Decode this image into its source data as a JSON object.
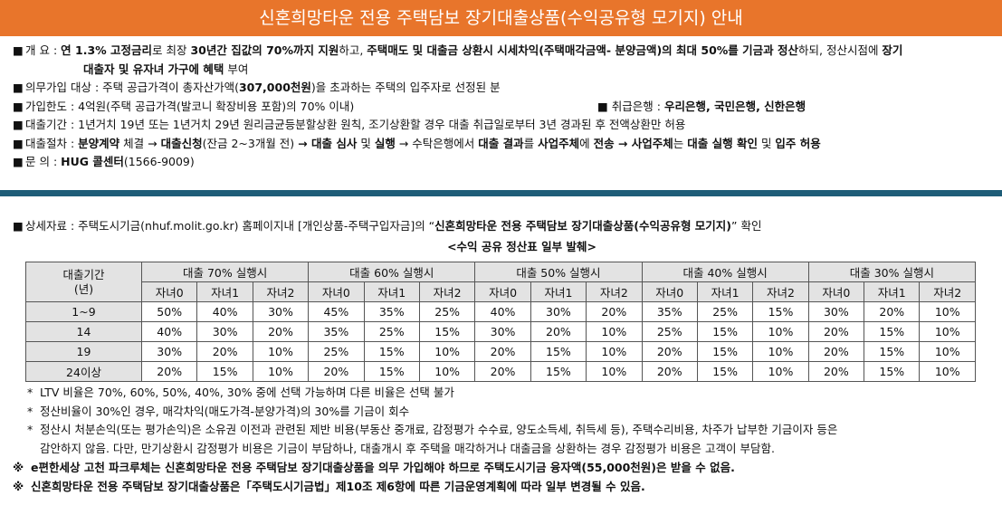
{
  "title": "신혼희망타운 전용 주택담보 장기대출상품(수익공유형 모기지) 안내",
  "bullet": "■",
  "items": {
    "overview": {
      "label": "개    요 : ",
      "p1": "연 1.3% 고정금리",
      "p2": "로 최장 ",
      "p3": "30년간 집값의 70%까지 지원",
      "p4": "하고, ",
      "p5": "주택매도 및 대출금 상환시 시세차익(주택매각금액- 분양금액)의 최대 50%를 기금과 정산",
      "p6": "하되, 정산시점에 ",
      "p7": "장기",
      "p8": "대출자 및 유자녀 가구에 혜택",
      "p9": " 부여"
    },
    "eligibility": {
      "p1": "의무가입 대상 : 주택 공급가격이 총자산가액(",
      "p2": "307,000천원",
      "p3": ")을 초과하는 주택의 입주자로 선정된 분"
    },
    "limit": {
      "text": "가입한도 : 4억원(주택 공급가격(발코니 확장비용 포함)의 70% 이내)",
      "bank_label": "취급은행 : ",
      "banks": "우리은행, 국민은행, 신한은행"
    },
    "period": {
      "text": "대출기간 : 1년거치 19년 또는 1년거치 29년 원리금균등분할상환 원칙, 조기상환할 경우 대출 취급일로부터 3년 경과된 후 전액상환만 허용"
    },
    "procedure": {
      "p1": "대출절차 : ",
      "p2": "분양계약",
      "p3": " 체결 → ",
      "p4": "대출신청",
      "p5": "(잔금 2~3개월 전) ",
      "p6": "→ 대출 심사",
      "p7": " 및 ",
      "p8": "실행",
      "p9": " → 수탁은행에서 ",
      "p10": "대출 결과",
      "p11": "를 ",
      "p12": "사업주체",
      "p13": "에 ",
      "p14": "전송 → 사업주체",
      "p15": "는 ",
      "p16": "대출 실행 확인",
      "p17": " 및 ",
      "p18": "입주 허용"
    },
    "contact": {
      "label": "문      의 : ",
      "name": "HUG 콜센터",
      "phone": "(1566-9009)"
    }
  },
  "details": {
    "p1": "상세자료 : 주택도시기금(nhuf.molit.go.kr) 홈페이지내 [개인상품-주택구입자금]의 “",
    "p2": "신혼희망타운 전용 주택담보 장기대출상품(수익공유형 모기지)",
    "p3": "” 확인"
  },
  "table_caption": "<수익 공유 정산표 일부 발췌>",
  "table": {
    "corner_line1": "대출기간",
    "corner_line2": "(년)",
    "groups": [
      "대출 70% 실행시",
      "대출 60% 실행시",
      "대출  50% 실행시",
      "대출 40% 실행시",
      "대출 30% 실행시"
    ],
    "sub": [
      "자녀0",
      "자녀1",
      "자녀2"
    ],
    "rows": [
      {
        "label": "1~9",
        "cells": [
          "50%",
          "40%",
          "30%",
          "45%",
          "35%",
          "25%",
          "40%",
          "30%",
          "20%",
          "35%",
          "25%",
          "15%",
          "30%",
          "20%",
          "10%"
        ]
      },
      {
        "label": "14",
        "cells": [
          "40%",
          "30%",
          "20%",
          "35%",
          "25%",
          "15%",
          "30%",
          "20%",
          "10%",
          "25%",
          "15%",
          "10%",
          "20%",
          "15%",
          "10%"
        ]
      },
      {
        "label": "19",
        "cells": [
          "30%",
          "20%",
          "10%",
          "25%",
          "15%",
          "10%",
          "20%",
          "15%",
          "10%",
          "20%",
          "15%",
          "10%",
          "20%",
          "15%",
          "10%"
        ]
      },
      {
        "label": "24이상",
        "cells": [
          "20%",
          "15%",
          "10%",
          "20%",
          "15%",
          "10%",
          "20%",
          "15%",
          "10%",
          "20%",
          "15%",
          "10%",
          "20%",
          "15%",
          "10%"
        ]
      }
    ]
  },
  "notes": {
    "star": "*",
    "n1": "LTV 비율은 70%, 60%, 50%, 40%, 30% 중에 선택 가능하며 다른 비율은 선택 불가",
    "n2": "정산비율이 30%인 경우, 매각차익(매도가격-분양가격)의 30%를 기금이 회수",
    "n3a": "정산시 처분손익(또는 평가손익)은 소유권 이전과 관련된 제반 비용(부동산 중개료, 감정평가 수수료, 양도소득세, 취득세 등), 주택수리비용, 차주가 납부한 기금이자 등은",
    "n3b": "감안하지 않음. 다만, 만기상환시 감정평가 비용은 기금이 부담하나, 대출개시 후 주택을 매각하거나 대출금을 상환하는 경우 감정평가 비용은 고객이 부담함.",
    "mark": "※",
    "w1": "e편한세상 고천 파크루체는 신혼희망타운 전용 주택담보 장기대출상품을 의무 가입해야 하므로 주택도시기금 융자액(55,000천원)은 받을 수 없음.",
    "w2": "신혼희망타운 전용 주택담보 장기대출상품은「주택도시기금법」제10조 제6항에 따른 기금운영계획에 따라 일부 변경될 수 있음."
  }
}
